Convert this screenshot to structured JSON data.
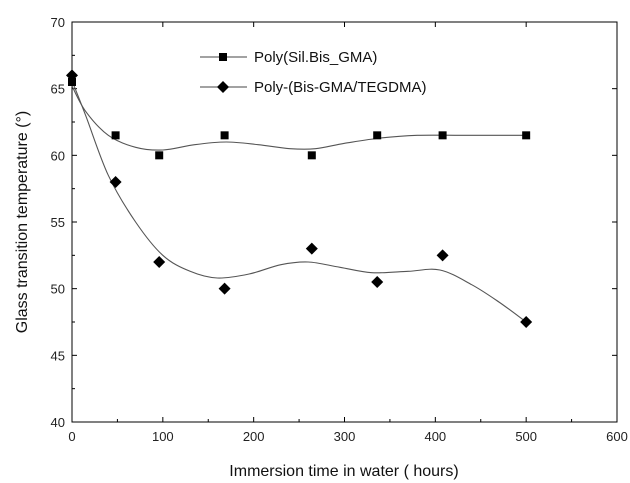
{
  "chart_data": {
    "type": "scatter",
    "xlabel": "Immersion time in water ( hours)",
    "ylabel": "Glass transition temperature (°)",
    "xlim": [
      0,
      600
    ],
    "ylim": [
      40,
      70
    ],
    "xticks": [
      0,
      100,
      200,
      300,
      400,
      500,
      600
    ],
    "yticks": [
      40,
      45,
      50,
      55,
      60,
      65,
      70
    ],
    "grid": false,
    "legend_position": "top-center",
    "series": [
      {
        "name": "Poly(Sil.Bis_GMA)",
        "marker": "square",
        "color": "#000000",
        "x": [
          0,
          48,
          96,
          168,
          264,
          336,
          408,
          500
        ],
        "y": [
          65.5,
          61.5,
          60,
          61.5,
          60,
          61.5,
          61.5,
          61.5
        ],
        "fit": [
          [
            0,
            65.2
          ],
          [
            15,
            63.3
          ],
          [
            40,
            61.5
          ],
          [
            70,
            60.6
          ],
          [
            100,
            60.4
          ],
          [
            135,
            60.8
          ],
          [
            170,
            61.0
          ],
          [
            205,
            60.8
          ],
          [
            240,
            60.5
          ],
          [
            268,
            60.5
          ],
          [
            300,
            60.9
          ],
          [
            340,
            61.3
          ],
          [
            380,
            61.5
          ],
          [
            430,
            61.5
          ],
          [
            500,
            61.5
          ]
        ]
      },
      {
        "name": "Poly-(Bis-GMA/TEGDMA)",
        "marker": "diamond",
        "color": "#000000",
        "x": [
          0,
          48,
          96,
          168,
          264,
          336,
          408,
          500
        ],
        "y": [
          66,
          58,
          52,
          50,
          53,
          50.5,
          52.5,
          47.5
        ],
        "fit": [
          [
            0,
            65.6
          ],
          [
            15,
            63.0
          ],
          [
            40,
            58.5
          ],
          [
            70,
            55.0
          ],
          [
            100,
            52.5
          ],
          [
            130,
            51.3
          ],
          [
            160,
            50.8
          ],
          [
            195,
            51.1
          ],
          [
            230,
            51.8
          ],
          [
            260,
            52.0
          ],
          [
            295,
            51.6
          ],
          [
            330,
            51.2
          ],
          [
            370,
            51.3
          ],
          [
            405,
            51.4
          ],
          [
            440,
            50.3
          ],
          [
            470,
            49.0
          ],
          [
            500,
            47.5
          ]
        ]
      }
    ]
  }
}
